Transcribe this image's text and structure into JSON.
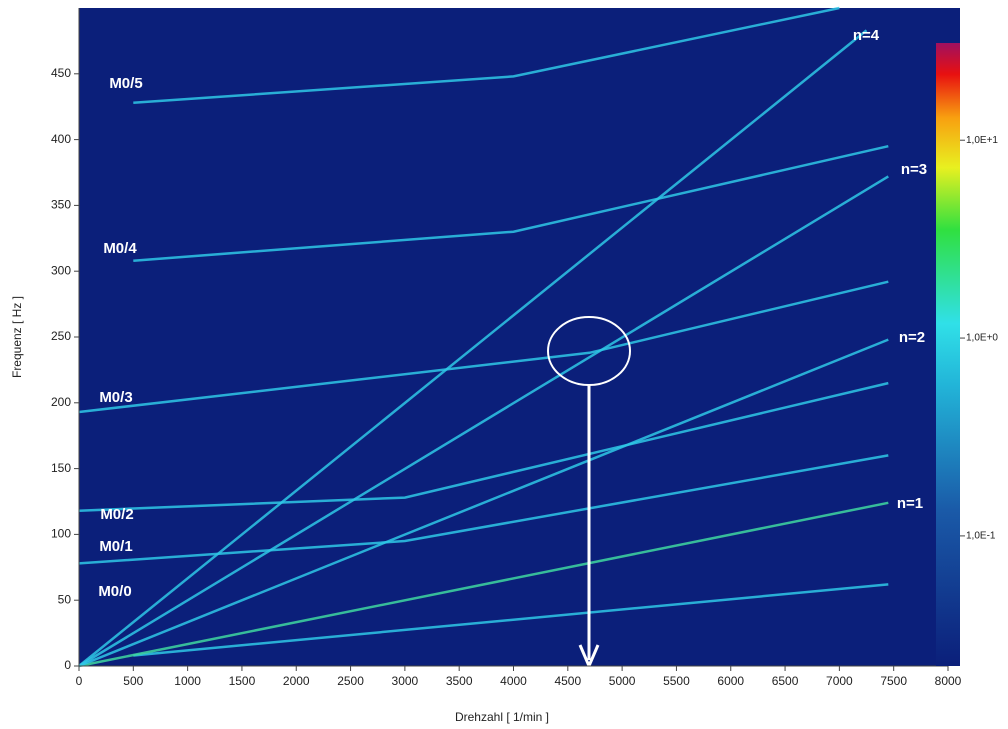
{
  "chart_data": {
    "type": "campbell",
    "x_label": "Drehzahl [ 1/min ]",
    "y_label": "Frequenz [ Hz ]",
    "xlim": [
      0,
      8000
    ],
    "xticks": [
      0,
      500,
      1000,
      1500,
      2000,
      2500,
      3000,
      3500,
      4000,
      4500,
      5000,
      5500,
      6000,
      6500,
      7000,
      7500,
      8000
    ],
    "ylim": [
      0,
      500
    ],
    "yticks": [
      0,
      50,
      100,
      150,
      200,
      250,
      300,
      350,
      400,
      450
    ],
    "background": "#0b1f7a",
    "colorbar": {
      "log": true,
      "lim": [
        0.022,
        31
      ],
      "ticks": [
        {
          "value": 10,
          "label": "1,0E+1"
        },
        {
          "value": 1,
          "label": "1,0E+0"
        },
        {
          "value": 0.1,
          "label": "1,0E-1"
        }
      ]
    },
    "series": [
      {
        "name": "M0/0",
        "color": "#2fc8e6",
        "x": [
          500,
          7450
        ],
        "values": [
          8,
          62
        ]
      },
      {
        "name": "M0/1",
        "color": "#2fc8e6",
        "x": [
          0,
          3000,
          7450
        ],
        "values": [
          78,
          95,
          160
        ]
      },
      {
        "name": "M0/2",
        "color": "#2fc8e6",
        "x": [
          0,
          3000,
          7450
        ],
        "values": [
          118,
          128,
          215
        ]
      },
      {
        "name": "M0/3",
        "color": "#2fc8e6",
        "x": [
          0,
          4700,
          7450
        ],
        "values": [
          193,
          238,
          292
        ]
      },
      {
        "name": "M0/4",
        "color": "#2fc8e6",
        "x": [
          500,
          4000,
          7450
        ],
        "values": [
          308,
          330,
          395
        ]
      },
      {
        "name": "M0/5",
        "color": "#2fc8e6",
        "x": [
          500,
          4000,
          7000
        ],
        "values": [
          428,
          448,
          500
        ]
      },
      {
        "name": "n=1",
        "color": "#3fd8a0",
        "x": [
          0,
          7450
        ],
        "values": [
          0,
          124
        ]
      },
      {
        "name": "n=2",
        "color": "#2fc8e6",
        "x": [
          0,
          7450
        ],
        "values": [
          0,
          248
        ]
      },
      {
        "name": "n=3",
        "color": "#2fc8e6",
        "x": [
          0,
          7450
        ],
        "values": [
          0,
          372
        ]
      },
      {
        "name": "n=4",
        "color": "#2fc8e6",
        "x": [
          0,
          7250
        ],
        "values": [
          0,
          483
        ]
      }
    ]
  }
}
